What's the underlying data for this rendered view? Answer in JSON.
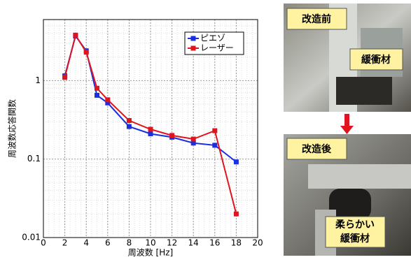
{
  "chart_data": {
    "type": "line",
    "x_label": "周波数 [Hz]",
    "y_label": "周波数応答関数",
    "x": [
      2,
      3,
      4,
      5,
      6,
      8,
      10,
      12,
      14,
      16,
      18
    ],
    "series": [
      {
        "name": "ピエゾ",
        "color": "#1a2fe0",
        "values": [
          1.15,
          3.7,
          2.4,
          0.65,
          0.52,
          0.26,
          0.21,
          0.19,
          0.16,
          0.15,
          0.092
        ]
      },
      {
        "name": "レーザー",
        "color": "#e0141e",
        "values": [
          1.1,
          3.8,
          2.3,
          0.8,
          0.57,
          0.31,
          0.24,
          0.2,
          0.18,
          0.23,
          0.02
        ]
      }
    ],
    "xlim": [
      0,
      20
    ],
    "xticks": [
      0,
      2,
      4,
      6,
      8,
      10,
      12,
      14,
      16,
      18,
      20
    ],
    "ylim": [
      0.01,
      6
    ],
    "yticks": [
      0.01,
      0.1,
      1
    ],
    "log_y": true,
    "grid": true,
    "legend": "upper right"
  },
  "photos": {
    "before": {
      "label": "改造前",
      "annotation": "緩衝材"
    },
    "after": {
      "label": "改造後",
      "annotation": [
        "柔らかい",
        "緩衝材"
      ]
    }
  }
}
